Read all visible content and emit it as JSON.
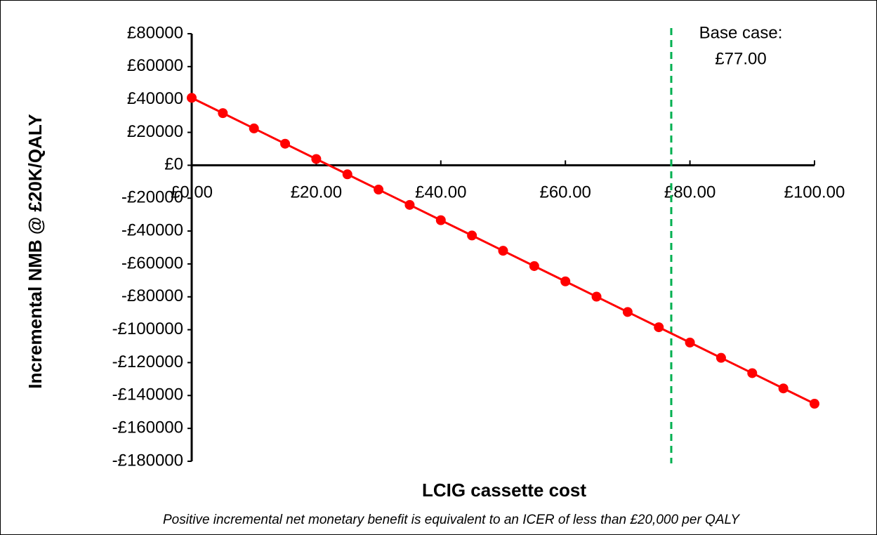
{
  "chart_data": {
    "type": "line",
    "x": [
      0,
      5,
      10,
      15,
      20,
      25,
      30,
      35,
      40,
      45,
      50,
      55,
      60,
      65,
      70,
      75,
      80,
      85,
      90,
      95,
      100
    ],
    "values": [
      41000,
      31700,
      22400,
      13100,
      3800,
      -5500,
      -14800,
      -24100,
      -33400,
      -42700,
      -52000,
      -61300,
      -70600,
      -79900,
      -89200,
      -98500,
      -107800,
      -117100,
      -126400,
      -135700,
      -145000
    ],
    "color": "#ff0000",
    "xlabel": "LCIG cassette cost",
    "ylabel": "Incremental NMB @ £20K/QALY",
    "note": "Positive incremental net monetary benefit is equivalent to an ICER of less than £20,000 per QALY",
    "xlim": [
      0,
      100
    ],
    "xticks": [
      {
        "value": 0,
        "label": "£0.00"
      },
      {
        "value": 20,
        "label": "£20.00"
      },
      {
        "value": 40,
        "label": "£40.00"
      },
      {
        "value": 60,
        "label": "£60.00"
      },
      {
        "value": 80,
        "label": "£80.00"
      },
      {
        "value": 100,
        "label": "£100.00"
      }
    ],
    "ylim": [
      -180000,
      80000
    ],
    "yticks": [
      {
        "value": 80000,
        "label": "£80000"
      },
      {
        "value": 60000,
        "label": "£60000"
      },
      {
        "value": 40000,
        "label": "£40000"
      },
      {
        "value": 20000,
        "label": "£20000"
      },
      {
        "value": 0,
        "label": "£0"
      },
      {
        "value": -20000,
        "label": "-£20000"
      },
      {
        "value": -40000,
        "label": "-£40000"
      },
      {
        "value": -60000,
        "label": "-£60000"
      },
      {
        "value": -80000,
        "label": "-£80000"
      },
      {
        "value": -100000,
        "label": "-£100000"
      },
      {
        "value": -120000,
        "label": "-£120000"
      },
      {
        "value": -140000,
        "label": "-£140000"
      },
      {
        "value": -160000,
        "label": "-£160000"
      },
      {
        "value": -180000,
        "label": "-£180000"
      }
    ],
    "reference_line": {
      "x": 77,
      "color": "#00b050",
      "label": [
        "Base case:",
        "£77.00"
      ]
    },
    "grid": false
  }
}
